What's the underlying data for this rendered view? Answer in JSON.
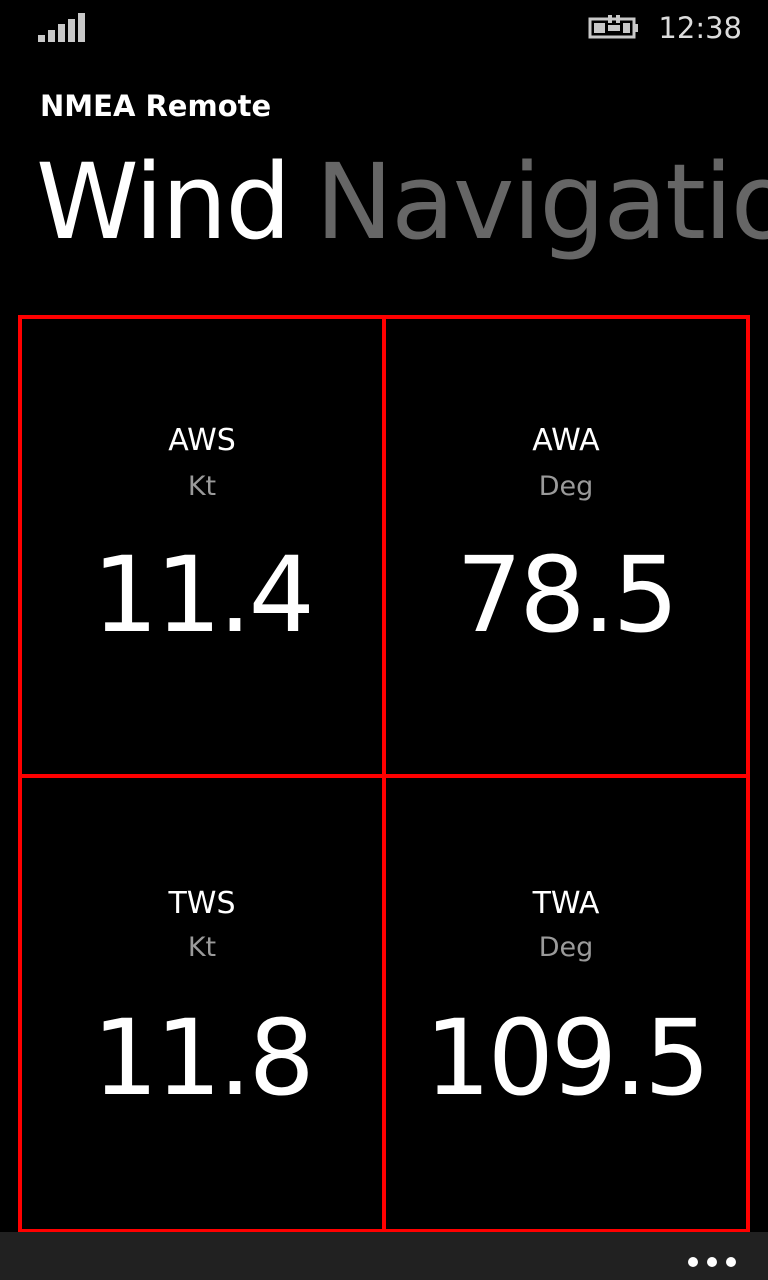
{
  "status_bar": {
    "time": "12:38",
    "signal_icon": "signal-strength-icon",
    "battery_icon": "battery-charging-icon"
  },
  "app": {
    "title": "NMEA Remote"
  },
  "pivot": {
    "items": [
      {
        "label": "Wind",
        "active": true
      },
      {
        "label": "Navigatio",
        "active": false
      }
    ]
  },
  "tiles": [
    {
      "label": "AWS",
      "unit": "Kt",
      "value": "11.4"
    },
    {
      "label": "AWA",
      "unit": "Deg",
      "value": "78.5"
    },
    {
      "label": "TWS",
      "unit": "Kt",
      "value": "11.8"
    },
    {
      "label": "TWA",
      "unit": "Deg",
      "value": "109.5"
    }
  ],
  "app_bar": {
    "more_icon": "more-options-icon"
  },
  "colors": {
    "tile_border": "#ff0000",
    "background": "#000000",
    "app_bar": "#212121",
    "inactive_pivot": "#666666",
    "unit_text": "#9a9a9a"
  }
}
